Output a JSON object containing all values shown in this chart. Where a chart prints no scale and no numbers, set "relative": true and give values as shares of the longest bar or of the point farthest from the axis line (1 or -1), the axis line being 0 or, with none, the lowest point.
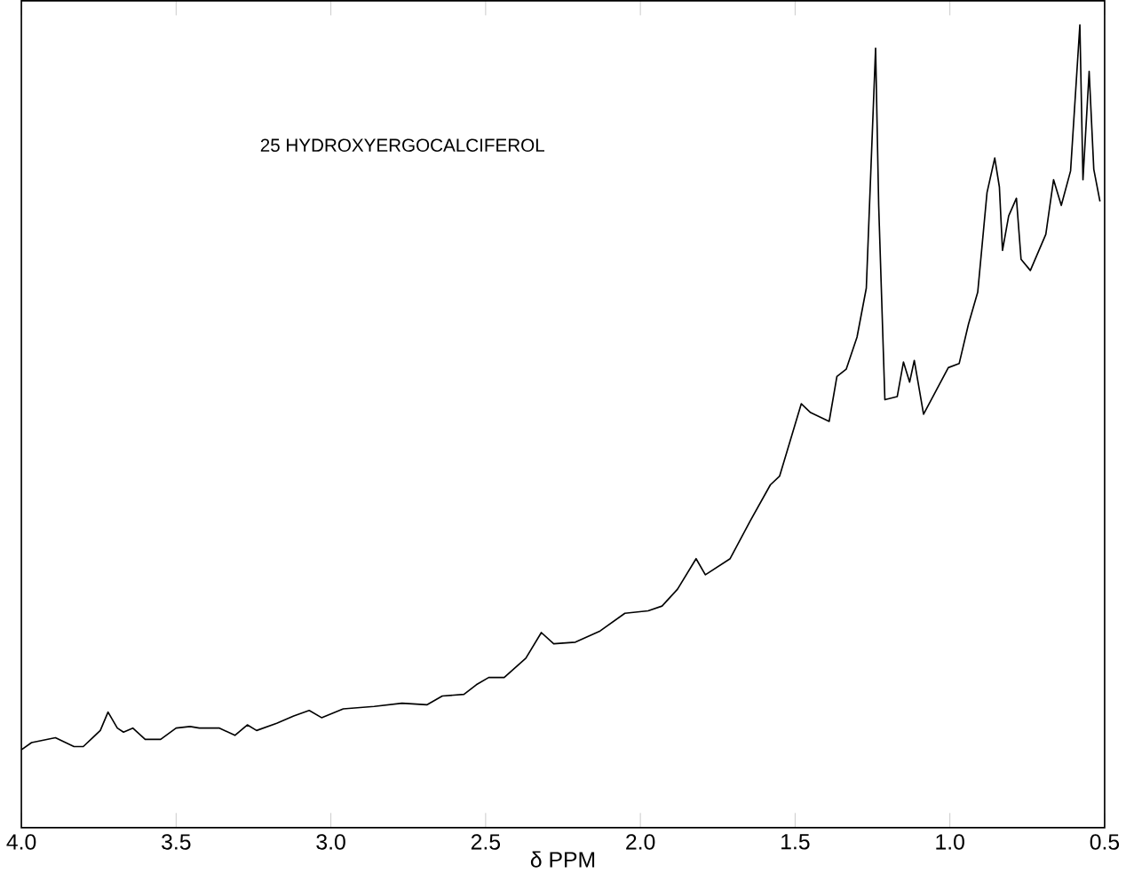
{
  "chart_data": {
    "type": "line",
    "relative": true,
    "xlabel": "δ PPM",
    "annotations": [
      "25 HYDROXYERGOCALCIFEROL"
    ],
    "xlim": [
      4.0,
      0.5
    ],
    "xticks": [
      {
        "value": 4.0,
        "label": "4.0"
      },
      {
        "value": 3.5,
        "label": "3.5"
      },
      {
        "value": 3.0,
        "label": "3.0"
      },
      {
        "value": 2.5,
        "label": "2.5"
      },
      {
        "value": 2.0,
        "label": "2.0"
      },
      {
        "value": 1.5,
        "label": "1.5"
      },
      {
        "value": 1.0,
        "label": "1.0"
      },
      {
        "value": 0.5,
        "label": "0.5"
      }
    ],
    "color": "#000000",
    "grid": false,
    "x": [
      4.0,
      3.967,
      3.89,
      3.83,
      3.8,
      3.77,
      3.745,
      3.72,
      3.69,
      3.67,
      3.64,
      3.6,
      3.55,
      3.525,
      3.5,
      3.455,
      3.425,
      3.36,
      3.31,
      3.27,
      3.24,
      3.175,
      3.12,
      3.07,
      3.03,
      2.96,
      2.86,
      2.77,
      2.69,
      2.64,
      2.57,
      2.53,
      2.49,
      2.44,
      2.37,
      2.32,
      2.28,
      2.21,
      2.13,
      2.05,
      1.975,
      1.93,
      1.88,
      1.82,
      1.79,
      1.71,
      1.645,
      1.58,
      1.55,
      1.48,
      1.45,
      1.39,
      1.365,
      1.335,
      1.3,
      1.27,
      1.24,
      1.23,
      1.21,
      1.17,
      1.15,
      1.13,
      1.115,
      1.085,
      1.045,
      1.005,
      0.97,
      0.94,
      0.91,
      0.88,
      0.855,
      0.84,
      0.83,
      0.81,
      0.785,
      0.77,
      0.74,
      0.69,
      0.665,
      0.64,
      0.61,
      0.58,
      0.57,
      0.55,
      0.535,
      0.515
    ],
    "values": [
      0.097,
      0.106,
      0.112,
      0.101,
      0.101,
      0.112,
      0.121,
      0.144,
      0.124,
      0.119,
      0.124,
      0.11,
      0.11,
      null,
      0.124,
      0.126,
      0.124,
      0.124,
      0.115,
      0.128,
      0.121,
      0.13,
      0.139,
      0.146,
      0.137,
      0.148,
      0.151,
      0.155,
      0.153,
      0.164,
      0.166,
      0.178,
      0.187,
      0.187,
      0.211,
      0.243,
      0.229,
      0.231,
      0.245,
      0.267,
      0.27,
      0.276,
      0.297,
      0.335,
      0.315,
      0.335,
      0.382,
      0.427,
      0.438,
      0.528,
      0.517,
      0.506,
      0.562,
      0.571,
      0.611,
      0.672,
      0.971,
      0.775,
      0.533,
      0.537,
      0.58,
      0.555,
      0.582,
      0.515,
      0.544,
      0.573,
      0.578,
      0.627,
      0.667,
      0.791,
      0.834,
      0.798,
      0.719,
      0.762,
      0.784,
      0.708,
      0.694,
      0.739,
      0.807,
      0.775,
      0.818,
      1.0,
      0.807,
      0.942,
      0.82,
      0.78
    ]
  }
}
